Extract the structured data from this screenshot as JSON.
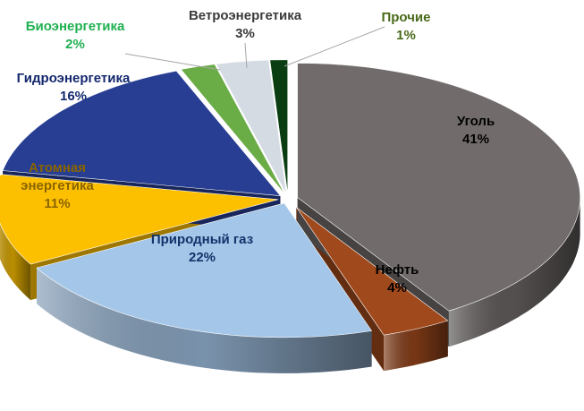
{
  "chart_data": {
    "type": "pie",
    "title": "",
    "style": "3d-exploded",
    "legend": "none",
    "slices": [
      {
        "label": "Уголь",
        "value": 41,
        "value_label": "41%",
        "color": "#716c6b",
        "label_color": "#000000"
      },
      {
        "label": "Нефть",
        "value": 4,
        "value_label": "4%",
        "color": "#a0491c",
        "label_color": "#000000"
      },
      {
        "label": "Природный газ",
        "value": 22,
        "value_label": "22%",
        "color": "#a4c6e8",
        "label_color": "#14326b"
      },
      {
        "label": "Атомная энергетика",
        "value": 11,
        "value_label": "11%",
        "color": "#fdc000",
        "label_color": "#8a6400"
      },
      {
        "label": "Гидроэнергетика",
        "value": 16,
        "value_label": "16%",
        "color": "#273e93",
        "label_color": "#14286e"
      },
      {
        "label": "Биоэнергетика",
        "value": 2,
        "value_label": "2%",
        "color": "#6aac46",
        "label_color": "#20b050"
      },
      {
        "label": "Ветроэнергетика",
        "value": 3,
        "value_label": "3%",
        "color": "#d4dbe3",
        "label_color": "#3a3a3a"
      },
      {
        "label": "Прочие",
        "value": 1,
        "value_label": "1%",
        "color": "#0a3d12",
        "label_color": "#4a6a1a"
      }
    ]
  }
}
